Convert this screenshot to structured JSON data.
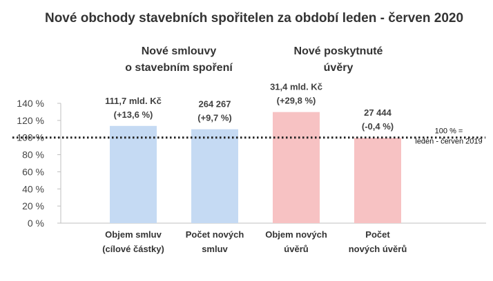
{
  "chart_data": {
    "type": "bar",
    "title": "Nové obchody stavebních spořitelen za období leden - červen 2020",
    "groups": [
      {
        "label_lines": [
          "Nové smlouvy",
          "o stavebním spoření"
        ]
      },
      {
        "label_lines": [
          "Nové poskytnuté",
          "úvěry"
        ]
      }
    ],
    "categories": [
      [
        "Objem smluv",
        "(cílové částky)"
      ],
      [
        "Počet  nových",
        "smluv"
      ],
      [
        "Objem nových",
        "úvěrů"
      ],
      [
        "Počet",
        "nových úvěrů"
      ]
    ],
    "values": [
      113.6,
      109.7,
      129.8,
      99.6
    ],
    "data_labels": [
      [
        "111,7 mld. Kč",
        "(+13,6 %)"
      ],
      [
        "264 267",
        "(+9,7 %)"
      ],
      [
        "31,4 mld. Kč",
        "(+29,8 %)"
      ],
      [
        "27 444",
        "(-0,4 %)"
      ]
    ],
    "colors": [
      "#c5daf3",
      "#c5daf3",
      "#f7c2c3",
      "#f7c2c3"
    ],
    "ylim": [
      0,
      140
    ],
    "yticks": [
      0,
      20,
      40,
      60,
      80,
      100,
      120,
      140
    ],
    "ytick_labels": [
      "0 %",
      "20 %",
      "40 %",
      "60 %",
      "80 %",
      "100 %",
      "120 %",
      "140 %"
    ],
    "reference_line": {
      "value": 100,
      "label_lines": [
        "100 % =",
        "leden - červen 2019"
      ]
    },
    "grid": false,
    "legend": "none"
  }
}
